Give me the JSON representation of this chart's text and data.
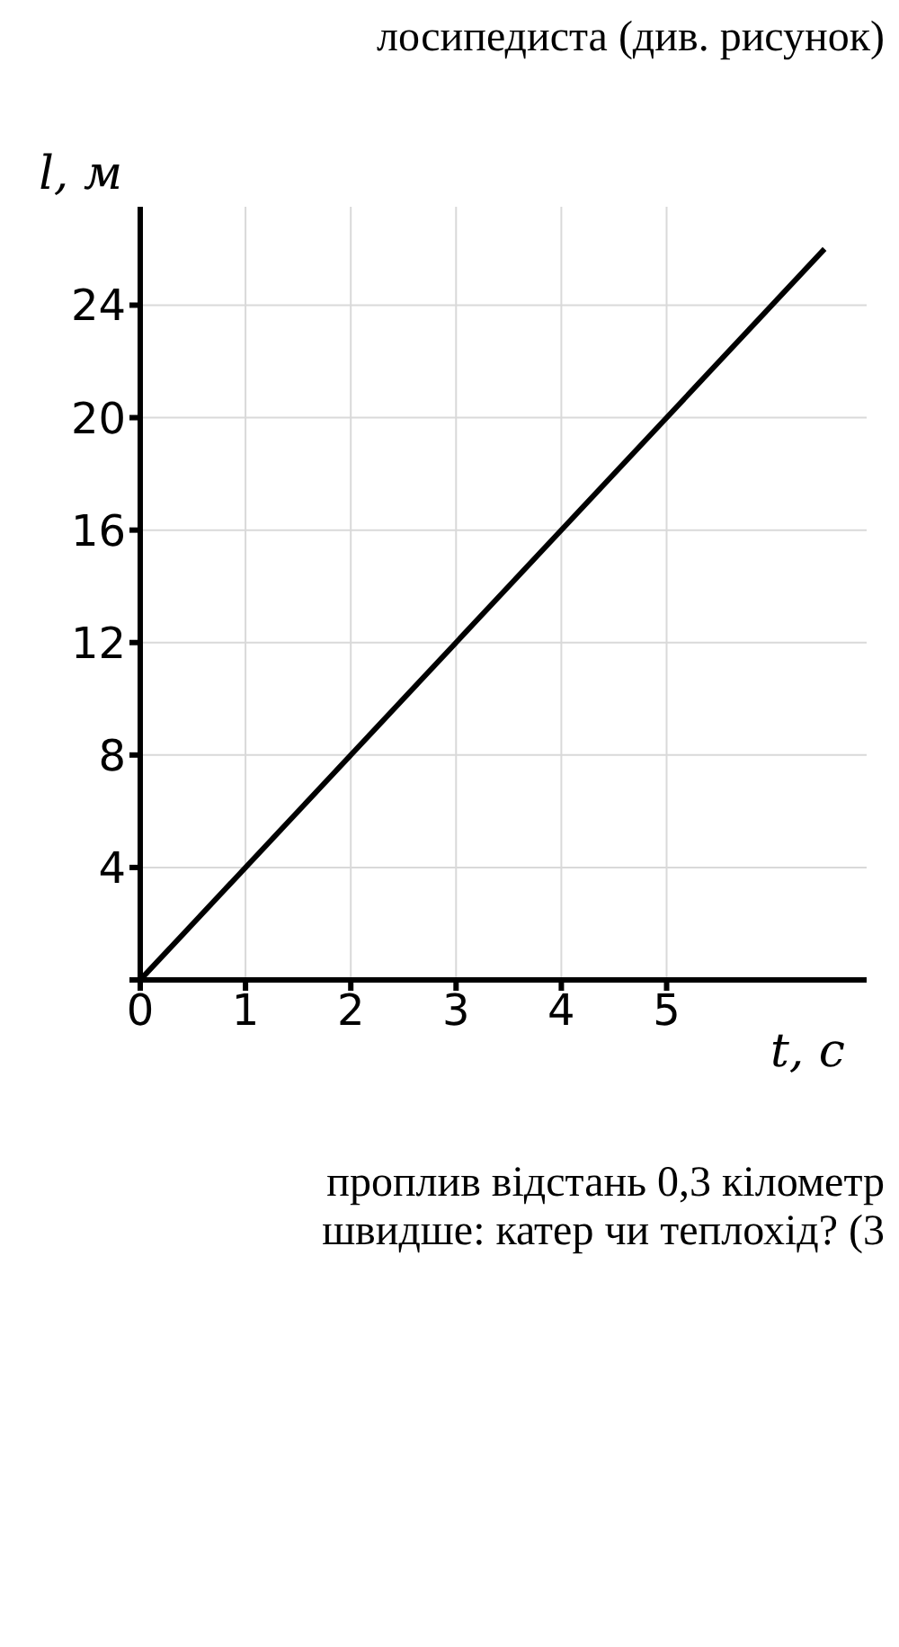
{
  "chart_data": {
    "type": "line",
    "xlabel": "t, с",
    "ylabel": "l, м",
    "annotations": [
      "лосипедиста (див. рисунок)",
      "проплив відстань 0,3 кілометр",
      "швидше: катер чи теплохід? (3"
    ],
    "x": [
      0,
      6.5
    ],
    "series": [
      {
        "color": "#000000",
        "values": [
          0,
          26
        ]
      }
    ],
    "xlim": [
      0,
      6.9
    ],
    "xticks": [
      0,
      1,
      2,
      3,
      4,
      5
    ],
    "ylim": [
      0,
      27.5
    ],
    "yticks": [
      {
        "value": 0,
        "label": null
      },
      4,
      8,
      12,
      16,
      20,
      24
    ],
    "grid": true,
    "legend": false,
    "marker": "none",
    "line_style": "solid"
  }
}
